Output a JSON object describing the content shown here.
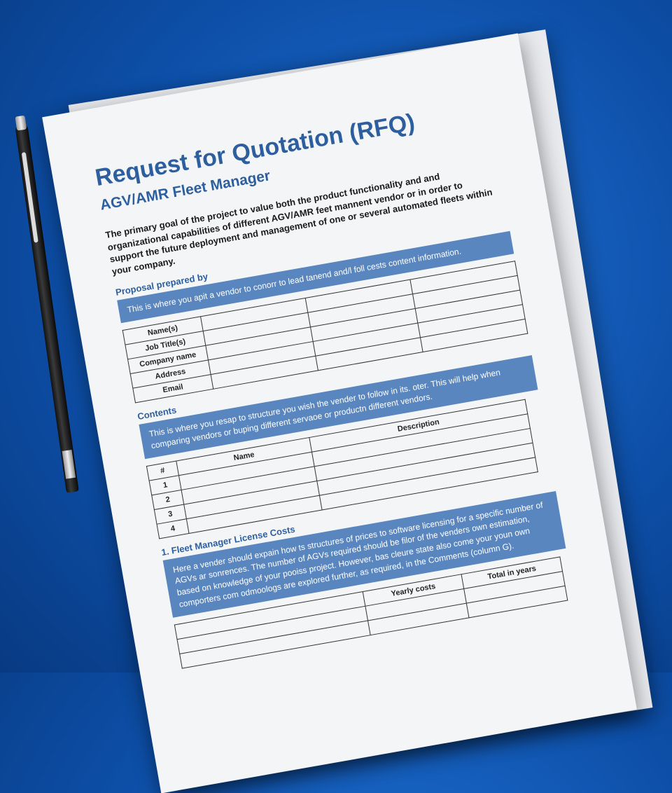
{
  "header": {
    "title": "Request for Quotation (RFQ)",
    "subtitle": "AGV/AMR Fleet Manager"
  },
  "intro": "The primary goal of the project to value both the product functionality and and organizational capabilities of different AGV/AMR feet mannent vendor or in order to support the future deployment and management of one or several automated fleets within your company.",
  "sections": [
    {
      "banner": "This is where you apit a vendor to conorr to lead tanend and/l foll cests content information.",
      "heading": "Proposal prepared by",
      "rows": [
        "Name(s)",
        "Job Title(s)",
        "Company name",
        "Address",
        "Email"
      ]
    },
    {
      "banner": "This is where you resap to structure you wish the vender to follow in its. oter. This will help when comparing vendors or buping different servaoe or productn different vendors.",
      "heading": "Contents",
      "columns": [
        "#",
        "Name",
        "Description"
      ],
      "rows": [
        "1",
        "2",
        "3",
        "4"
      ]
    },
    {
      "heading": "1.  Fleet Manager License Costs",
      "banner": "Here a vender should expain how ts structures of prices to software licensing for a specific number of AGVs ar sonrences. The number of AGVs required should be filor of the venders own estimation, based on knowledge of your pooiss project. However, bas cleure state also come your youn own comporters com odmoologs are explored further, as required, in the Comments (column G).",
      "columns": [
        "Yearly costs",
        "Total in years"
      ]
    }
  ]
}
